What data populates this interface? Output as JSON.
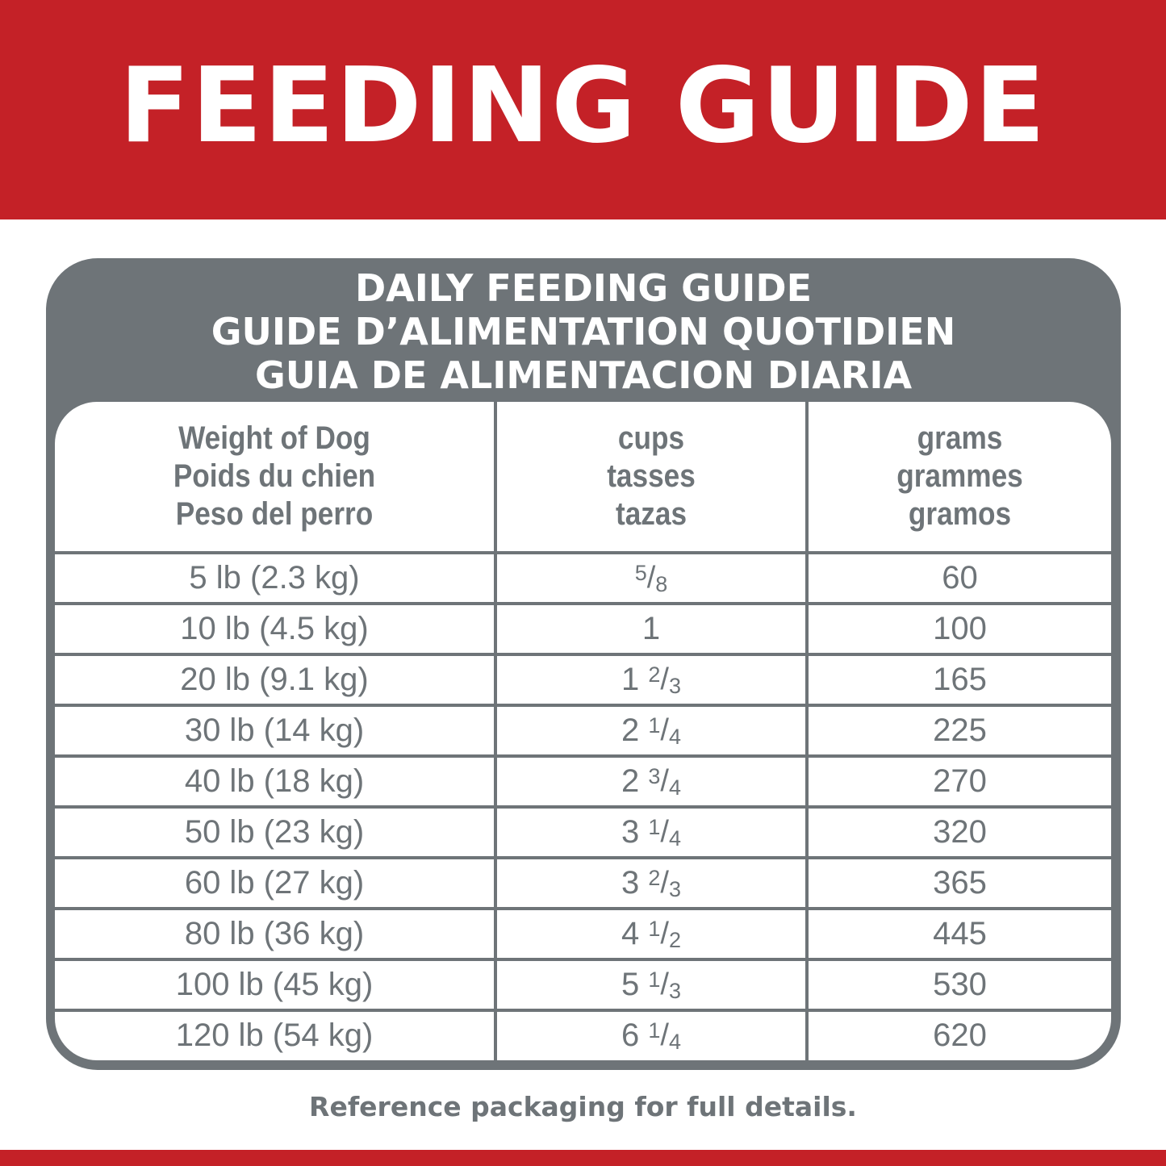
{
  "banner": {
    "title": "FEEDING GUIDE"
  },
  "panel": {
    "title_lines": [
      "DAILY FEEDING GUIDE",
      "GUIDE D’ALIMENTATION QUOTIDIEN",
      "GUIA DE ALIMENTACION DIARIA"
    ]
  },
  "table": {
    "headers": [
      [
        "Weight of Dog",
        "Poids du chien",
        "Peso del perro"
      ],
      [
        "cups",
        "tasses",
        "tazas"
      ],
      [
        "grams",
        "grammes",
        "gramos"
      ]
    ],
    "rows": [
      {
        "weight": "5 lb (2.3 kg)",
        "cups": {
          "whole": "",
          "num": "5",
          "den": "8"
        },
        "grams": "60"
      },
      {
        "weight": "10 lb (4.5 kg)",
        "cups": {
          "whole": "1",
          "num": "",
          "den": ""
        },
        "grams": "100"
      },
      {
        "weight": "20 lb (9.1 kg)",
        "cups": {
          "whole": "1",
          "num": "2",
          "den": "3"
        },
        "grams": "165"
      },
      {
        "weight": "30 lb (14 kg)",
        "cups": {
          "whole": "2",
          "num": "1",
          "den": "4"
        },
        "grams": "225"
      },
      {
        "weight": "40 lb (18 kg)",
        "cups": {
          "whole": "2",
          "num": "3",
          "den": "4"
        },
        "grams": "270"
      },
      {
        "weight": "50 lb (23 kg)",
        "cups": {
          "whole": "3",
          "num": "1",
          "den": "4"
        },
        "grams": "320"
      },
      {
        "weight": "60 lb (27 kg)",
        "cups": {
          "whole": "3",
          "num": "2",
          "den": "3"
        },
        "grams": "365"
      },
      {
        "weight": "80 lb (36 kg)",
        "cups": {
          "whole": "4",
          "num": "1",
          "den": "2"
        },
        "grams": "445"
      },
      {
        "weight": "100 lb (45 kg)",
        "cups": {
          "whole": "5",
          "num": "1",
          "den": "3"
        },
        "grams": "530"
      },
      {
        "weight": "120 lb (54 kg)",
        "cups": {
          "whole": "6",
          "num": "1",
          "den": "4"
        },
        "grams": "620"
      }
    ]
  },
  "footer": {
    "note": "Reference packaging for full details."
  },
  "colors": {
    "brand_red": "#c42127",
    "gray": "#6e7478"
  }
}
